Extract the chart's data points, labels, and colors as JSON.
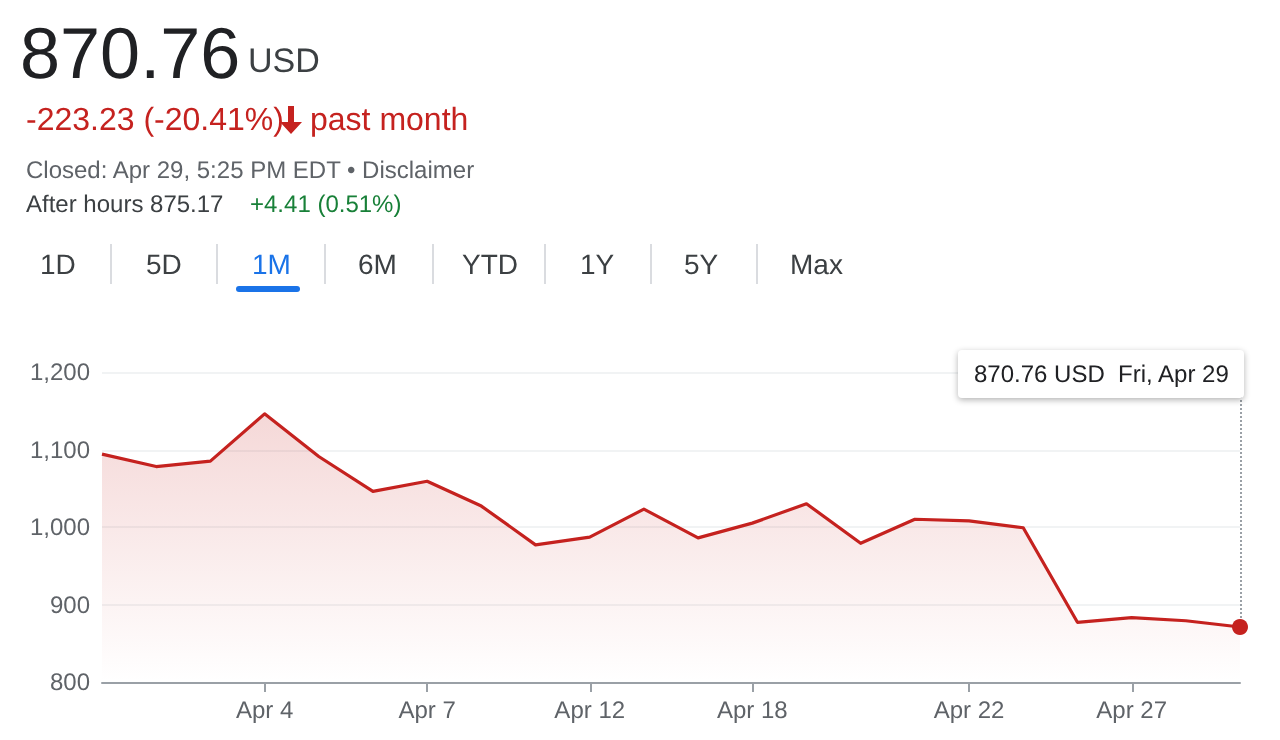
{
  "chart_data": {
    "type": "area",
    "title": "870.76",
    "annotations": [
      "USD",
      "-223.23 (-20.41%)",
      "past month",
      "Closed: Apr 29, 5:25 PM EDT • Disclaimer",
      "After hours 875.17",
      "+4.41 (0.51%)",
      "1D",
      "5D",
      "1M",
      "6M",
      "YTD",
      "1Y",
      "5Y",
      "Max",
      "870.76 USD  Fri, Apr 29"
    ],
    "categories": [
      null,
      null,
      null,
      "Apr 4",
      null,
      null,
      "Apr 7",
      null,
      null,
      "Apr 12",
      null,
      null,
      "Apr 18",
      null,
      null,
      null,
      "Apr 22",
      null,
      null,
      "Apr 27",
      null,
      null
    ],
    "series": [
      {
        "color": "#c5221f",
        "values": [
          1094,
          1078,
          1085,
          1146,
          1091,
          1046,
          1059,
          1027,
          977,
          987,
          1023,
          986,
          1005,
          1030,
          979,
          1010,
          1008,
          999,
          877,
          883,
          879,
          871
        ]
      }
    ],
    "ylim": [
      800,
      1200
    ],
    "yticks": [
      800,
      900,
      {
        "value": 1000,
        "label": "1,000"
      },
      {
        "value": 1100,
        "label": "1,100"
      },
      {
        "value": 1200,
        "label": "1,200"
      }
    ],
    "grid": "y",
    "marker": "none",
    "line_style": "solid"
  }
}
